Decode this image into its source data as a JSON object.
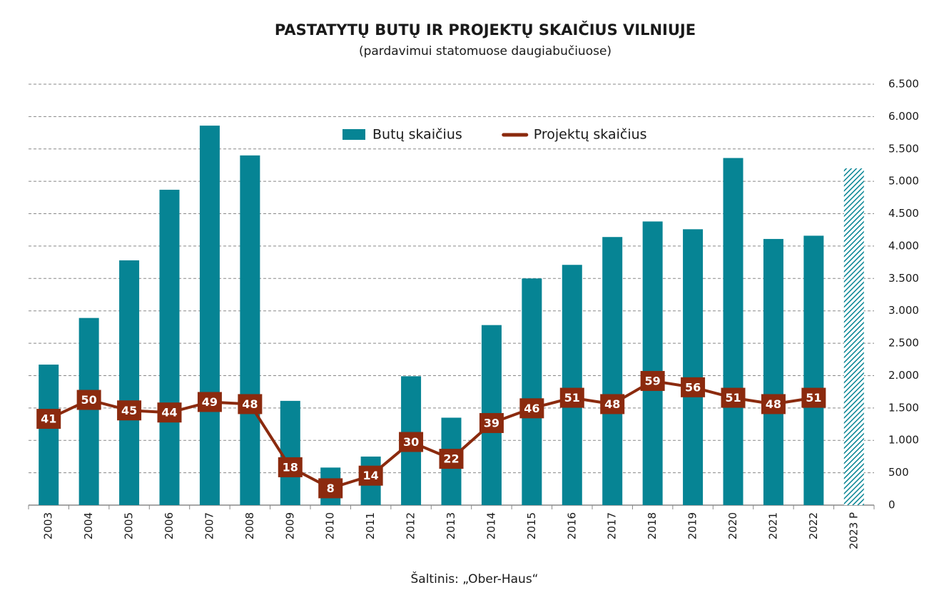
{
  "chart_data": {
    "type": "bar_line",
    "title": "PASTATYTŲ BUTŲ IR PROJEKTŲ SKAIČIUS VILNIUJE",
    "subtitle": "(pardavimui statomuose daugiabučiuose)",
    "source": "Šaltinis: „Ober-Haus“",
    "categories": [
      "2003",
      "2004",
      "2005",
      "2006",
      "2007",
      "2008",
      "2009",
      "2010",
      "2011",
      "2012",
      "2013",
      "2014",
      "2015",
      "2016",
      "2017",
      "2018",
      "2019",
      "2020",
      "2021",
      "2022",
      "2023 P"
    ],
    "series": [
      {
        "name": "Butų skaičius",
        "type": "bar",
        "color": "#068494",
        "hatched_index": 20,
        "values": [
          2170,
          2890,
          3780,
          4870,
          5860,
          5400,
          1610,
          580,
          750,
          1990,
          1350,
          2780,
          3500,
          3710,
          4140,
          4380,
          4260,
          5360,
          4110,
          4160,
          5200
        ]
      },
      {
        "name": "Projektų skaičius",
        "type": "line",
        "axis": "y2",
        "color": "#8b2a0e",
        "values": [
          41,
          50,
          45,
          44,
          49,
          48,
          18,
          8,
          14,
          30,
          22,
          39,
          46,
          51,
          48,
          59,
          56,
          51,
          48,
          51,
          null
        ]
      }
    ],
    "ylim": [
      0,
      6500
    ],
    "yticks": [
      0,
      500,
      {
        "value": 1000,
        "label": "1.000"
      },
      {
        "value": 1500,
        "label": "1.500"
      },
      {
        "value": 2000,
        "label": "2.000"
      },
      {
        "value": 2500,
        "label": "2.500"
      },
      {
        "value": 3000,
        "label": "3.000"
      },
      {
        "value": 3500,
        "label": "3.500"
      },
      {
        "value": 4000,
        "label": "4.000"
      },
      {
        "value": 4500,
        "label": "4.500"
      },
      {
        "value": 5000,
        "label": "5.000"
      },
      {
        "value": 5500,
        "label": "5.500"
      },
      {
        "value": 6000,
        "label": "6.000"
      },
      {
        "value": 6500,
        "label": "6.500"
      }
    ],
    "y2lim": [
      0,
      200
    ],
    "grid": true,
    "legend": "top"
  }
}
